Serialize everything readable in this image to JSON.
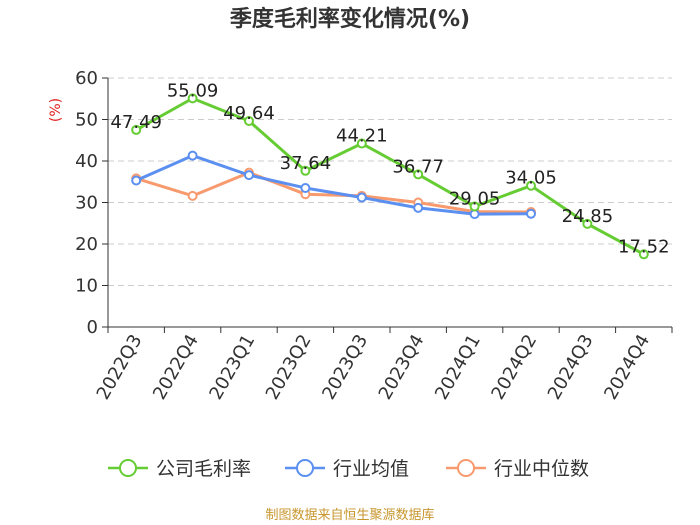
{
  "chart_data": {
    "type": "line",
    "title": "季度毛利率变化情况(%)",
    "ylabel": "(%)",
    "xlabel": "",
    "categories": [
      "2022Q3",
      "2022Q4",
      "2023Q1",
      "2023Q2",
      "2023Q3",
      "2023Q4",
      "2024Q1",
      "2024Q2",
      "2024Q3",
      "2024Q4"
    ],
    "ylim": [
      0,
      60
    ],
    "yticks": [
      0,
      10,
      20,
      30,
      40,
      50,
      60
    ],
    "grid": true,
    "legend_position": "bottom",
    "series": [
      {
        "name": "公司毛利率",
        "color": "#66cc33",
        "values": [
          47.49,
          55.09,
          49.64,
          37.64,
          44.21,
          36.77,
          29.05,
          34.05,
          24.85,
          17.52
        ],
        "labels": [
          "47.49",
          "55.09",
          "49.64",
          "37.64",
          "44.21",
          "36.77",
          "29.05",
          "34.05",
          "24.85",
          "17.52"
        ]
      },
      {
        "name": "行业均值",
        "color": "#5b8ff0",
        "values": [
          35.3,
          41.3,
          36.6,
          33.5,
          31.2,
          28.7,
          27.2,
          27.3,
          null,
          null
        ]
      },
      {
        "name": "行业中位数",
        "color": "#f79a6e",
        "values": [
          35.8,
          31.6,
          37.2,
          32.0,
          31.6,
          30.0,
          27.8,
          27.7,
          null,
          null
        ]
      }
    ]
  },
  "footer": {
    "source": "制图数据来自恒生聚源数据库"
  }
}
